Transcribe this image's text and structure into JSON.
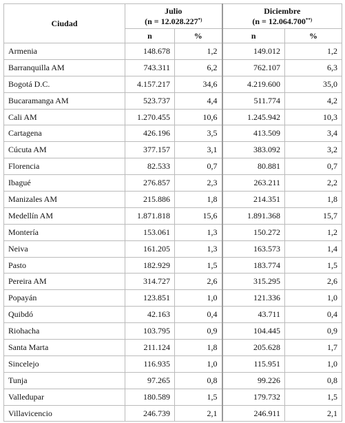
{
  "table": {
    "header": {
      "city": "Ciudad",
      "julio": {
        "title": "Julio",
        "n_text": "(n = 12.028.227",
        "note": "*)"
      },
      "diciembre": {
        "title": "Diciembre",
        "n_text": "(n = 12.064.700",
        "note": "**)"
      }
    },
    "subheader": [
      "n",
      "%",
      "n",
      "%"
    ],
    "rows": [
      [
        "Armenia",
        "148.678",
        "1,2",
        "149.012",
        "1,2"
      ],
      [
        "Barranquilla AM",
        "743.311",
        "6,2",
        "762.107",
        "6,3"
      ],
      [
        "Bogotá D.C.",
        "4.157.217",
        "34,6",
        "4.219.600",
        "35,0"
      ],
      [
        "Bucaramanga AM",
        "523.737",
        "4,4",
        "511.774",
        "4,2"
      ],
      [
        "Cali AM",
        "1.270.455",
        "10,6",
        "1.245.942",
        "10,3"
      ],
      [
        "Cartagena",
        "426.196",
        "3,5",
        "413.509",
        "3,4"
      ],
      [
        "Cúcuta AM",
        "377.157",
        "3,1",
        "383.092",
        "3,2"
      ],
      [
        "Florencia",
        "82.533",
        "0,7",
        "80.881",
        "0,7"
      ],
      [
        "Ibagué",
        "276.857",
        "2,3",
        "263.211",
        "2,2"
      ],
      [
        "Manizales AM",
        "215.886",
        "1,8",
        "214.351",
        "1,8"
      ],
      [
        "Medellín AM",
        "1.871.818",
        "15,6",
        "1.891.368",
        "15,7"
      ],
      [
        "Montería",
        "153.061",
        "1,3",
        "150.272",
        "1,2"
      ],
      [
        "Neiva",
        "161.205",
        "1,3",
        "163.573",
        "1,4"
      ],
      [
        "Pasto",
        "182.929",
        "1,5",
        "183.774",
        "1,5"
      ],
      [
        "Pereira AM",
        "314.727",
        "2,6",
        "315.295",
        "2,6"
      ],
      [
        "Popayán",
        "123.851",
        "1,0",
        "121.336",
        "1,0"
      ],
      [
        "Quibdó",
        "42.163",
        "0,4",
        "43.711",
        "0,4"
      ],
      [
        "Riohacha",
        "103.795",
        "0,9",
        "104.445",
        "0,9"
      ],
      [
        "Santa Marta",
        "211.124",
        "1,8",
        "205.628",
        "1,7"
      ],
      [
        "Sincelejo",
        "116.935",
        "1,0",
        "115.951",
        "1,0"
      ],
      [
        "Tunja",
        "97.265",
        "0,8",
        "99.226",
        "0,8"
      ],
      [
        "Valledupar",
        "180.589",
        "1,5",
        "179.732",
        "1,5"
      ],
      [
        "Villavicencio",
        "246.739",
        "2,1",
        "246.911",
        "2,1"
      ]
    ]
  }
}
